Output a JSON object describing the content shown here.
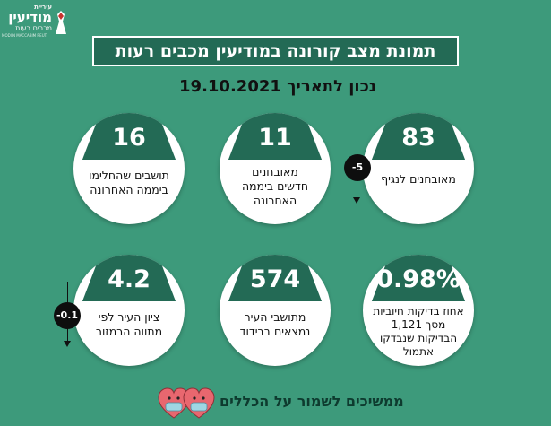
{
  "logo": {
    "small": "עיריית",
    "main": "מודיעין",
    "sub": "מכבים רעות",
    "tiny": "MODIIN MACCABIM REUT"
  },
  "header": {
    "title": "תמונת מצב קורונה במודיעין מכבים רעות",
    "date": "נכון לתאריך 19.10.2021"
  },
  "stats": [
    {
      "value": "83",
      "label": "מאובחנים לנגיף",
      "delta": "-5"
    },
    {
      "value": "11",
      "label": "מאובחנים חדשים ביממה האחרונה"
    },
    {
      "value": "16",
      "label": "תושבים שהחלימו ביממה האחרונה"
    },
    {
      "value": "0.98%",
      "label": "אחוז בדיקות חיוביות מסך 1,121 הבדיקות שנבדקו אתמול"
    },
    {
      "value": "574",
      "label": "מתושבי העיר נמצאים בבידוד"
    },
    {
      "value": "4.2",
      "label": "ציון העיר לפי מתווה הרמזור",
      "delta": "-0.1"
    }
  ],
  "footer": {
    "text": "ממשיכים לשמור על הכללים"
  },
  "colors": {
    "background": "#3d9a7b",
    "dark_green": "#236a55"
  }
}
